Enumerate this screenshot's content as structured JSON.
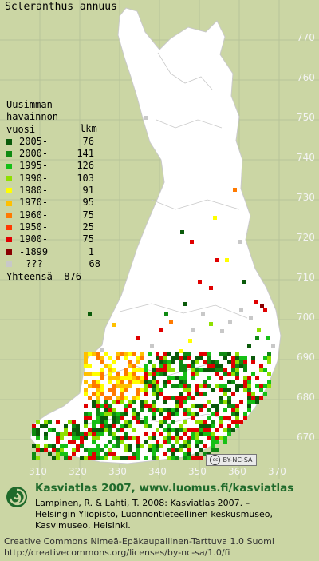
{
  "species": "Scleranthus annuus",
  "legend": {
    "header": [
      "Uusimman",
      "havainnon",
      "vuosi"
    ],
    "count_header": "lkm",
    "entries": [
      {
        "label": "2005-",
        "count": "76",
        "color": "#0a5a0a"
      },
      {
        "label": "2000-",
        "count": "141",
        "color": "#0f8a12"
      },
      {
        "label": "1995-",
        "count": "126",
        "color": "#16c016"
      },
      {
        "label": "1990-",
        "count": "103",
        "color": "#8fe000"
      },
      {
        "label": "1980-",
        "count": "91",
        "color": "#ffff00"
      },
      {
        "label": "1970-",
        "count": "95",
        "color": "#ffc000"
      },
      {
        "label": "1960-",
        "count": "75",
        "color": "#ff7a00"
      },
      {
        "label": "1950-",
        "count": "25",
        "color": "#ff3a00"
      },
      {
        "label": "1900-",
        "count": "75",
        "color": "#e00000"
      },
      {
        "label": "-1899",
        "count": "1",
        "color": "#8a0000"
      },
      {
        "label": "???",
        "count": "68",
        "color": "#c8c8c8"
      }
    ],
    "total_label": "Yhteensä",
    "total_count": "876"
  },
  "y_axis_labels": [
    "770",
    "760",
    "750",
    "740",
    "730",
    "720",
    "710",
    "700",
    "690",
    "680",
    "670"
  ],
  "x_axis_labels": [
    "310",
    "320",
    "330",
    "340",
    "350",
    "360",
    "370"
  ],
  "license_badge": "BY-NC-SA",
  "footer": {
    "brand": "Kasviatlas 2007, www.luomus.fi/kasviatlas",
    "citation": [
      "Lampinen, R. & Lahti, T. 2008: Kasviatlas 2007. –",
      "Helsingin Yliopisto, Luonnontieteellinen keskusmuseo,",
      "Kasvimuseo, Helsinki."
    ],
    "license": [
      "Creative Commons Nimeä-Epäkaupallinen-Tarttuva 1.0 Suomi",
      "http://creativecommons.org/licenses/by-nc-sa/1.0/fi"
    ]
  },
  "colors": {
    "background": "#cbd6a4",
    "land": "#ffffff",
    "grid": "#a8b88a",
    "brand": "#1f6a2b"
  }
}
